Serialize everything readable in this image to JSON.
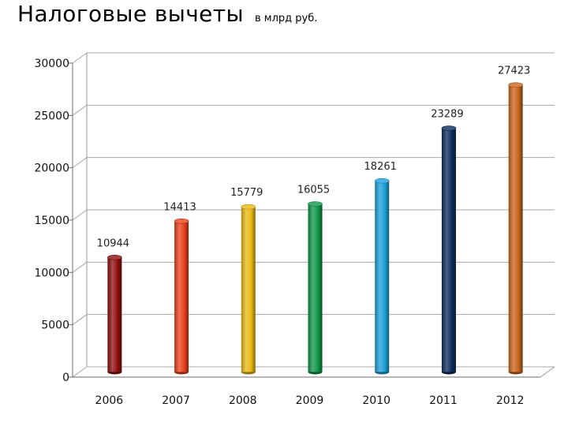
{
  "title": "Налоговые вычеты",
  "unit": "в млрд  руб.",
  "chart_data": {
    "type": "bar",
    "title": "Налоговые вычеты",
    "subtitle": "в млрд  руб.",
    "xlabel": "",
    "ylabel": "",
    "categories": [
      "2006",
      "2007",
      "2008",
      "2009",
      "2010",
      "2011",
      "2012"
    ],
    "values": [
      10944,
      14413,
      15779,
      16055,
      18261,
      23289,
      27423
    ],
    "data_labels": [
      "10944",
      "14413",
      "15779",
      "16055",
      "18261",
      "23289",
      "27423"
    ],
    "ylim": [
      0,
      30000
    ],
    "yticks": [
      0,
      5000,
      10000,
      15000,
      20000,
      25000,
      30000
    ],
    "ytick_labels": [
      "0",
      "5000",
      "10000",
      "15000",
      "20000",
      "25000",
      "30000"
    ],
    "grid": true,
    "legend": "none",
    "colors": [
      "#8e0f0f",
      "#e8401b",
      "#e8b913",
      "#10964a",
      "#1d9fd9",
      "#0e2a5e",
      "#c8651b"
    ]
  }
}
